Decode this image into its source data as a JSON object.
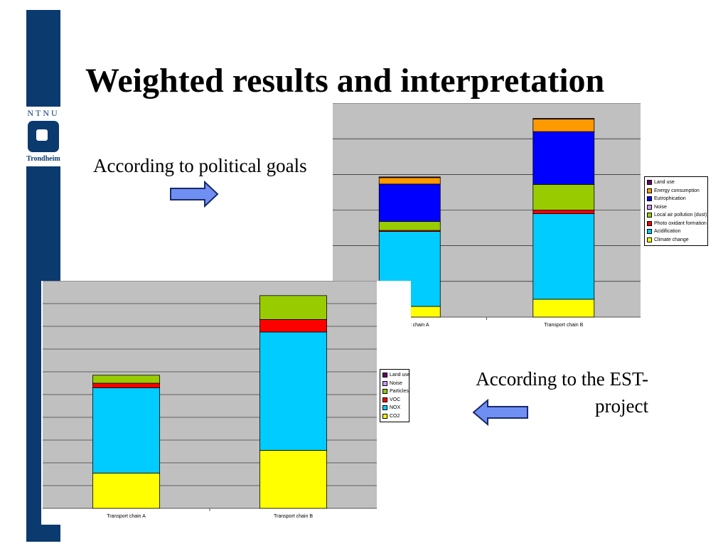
{
  "slide": {
    "title": "Weighted results and interpretation",
    "note_political": "According to political goals",
    "note_est_line1": "According to the EST-",
    "note_est_line2": "project"
  },
  "logo": {
    "letters": "NTNU",
    "city": "Trondheim"
  },
  "colors": {
    "sidebar": "#0a3a6e",
    "plot_bg": "#c0c0c0",
    "arrow_fill": "#6f8ff2"
  },
  "chart_data": [
    {
      "type": "bar",
      "stacked": true,
      "categories": [
        "Transport chain A",
        "Transport chain B"
      ],
      "ylim": [
        0,
        6
      ],
      "grid": true,
      "legend_position": "right",
      "series": [
        {
          "name": "Climate change",
          "color": "#ffff00",
          "values": [
            0.3,
            0.5
          ]
        },
        {
          "name": "Acidification",
          "color": "#00ccff",
          "values": [
            2.1,
            2.4
          ]
        },
        {
          "name": "Photo oxidant formation",
          "color": "#ff0000",
          "values": [
            0.03,
            0.1
          ]
        },
        {
          "name": "Local air pollution (dust)",
          "color": "#99cc00",
          "values": [
            0.25,
            0.72
          ]
        },
        {
          "name": "Noise",
          "color": "#cc99ff",
          "values": [
            0.0,
            0.0
          ]
        },
        {
          "name": "Eutrophication",
          "color": "#0000ff",
          "values": [
            1.05,
            1.48
          ]
        },
        {
          "name": "Energy consumption",
          "color": "#ff9900",
          "values": [
            0.18,
            0.35
          ]
        },
        {
          "name": "Land use",
          "color": "#660066",
          "values": [
            0.02,
            0.02
          ]
        }
      ]
    },
    {
      "type": "bar",
      "stacked": true,
      "categories": [
        "Transport chain A",
        "Transport chain B"
      ],
      "ylim": [
        0,
        10
      ],
      "grid": true,
      "legend_position": "right",
      "series": [
        {
          "name": "CO2",
          "color": "#ffff00",
          "values": [
            1.55,
            2.55
          ]
        },
        {
          "name": "NOX",
          "color": "#00ccff",
          "values": [
            3.75,
            5.2
          ]
        },
        {
          "name": "VOC",
          "color": "#ff0000",
          "values": [
            0.2,
            0.55
          ]
        },
        {
          "name": "Particles",
          "color": "#99cc00",
          "values": [
            0.35,
            1.05
          ]
        },
        {
          "name": "Noise",
          "color": "#cc99ff",
          "values": [
            0.0,
            0.0
          ]
        },
        {
          "name": "Land use",
          "color": "#660066",
          "values": [
            0.0,
            0.0
          ]
        }
      ]
    }
  ]
}
